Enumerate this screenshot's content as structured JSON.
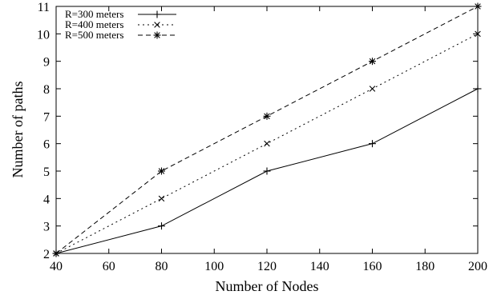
{
  "chart_data": {
    "type": "line",
    "xlabel": "Number of  Nodes",
    "ylabel": "Number of paths",
    "xlim": [
      40,
      200
    ],
    "ylim": [
      2,
      11
    ],
    "xticks": [
      40,
      60,
      80,
      100,
      120,
      140,
      160,
      180,
      200
    ],
    "yticks": [
      2,
      3,
      4,
      5,
      6,
      7,
      8,
      9,
      10,
      11
    ],
    "grid": false,
    "legend_position": "top-left",
    "x": [
      40,
      80,
      120,
      160,
      200
    ],
    "series": [
      {
        "name": "R=300 meters",
        "values": [
          2,
          3,
          5,
          6,
          8
        ],
        "line_style": "solid",
        "marker": "plus",
        "color": "#000000"
      },
      {
        "name": "R=400 meters",
        "values": [
          2,
          4,
          6,
          8,
          10
        ],
        "line_style": "dotted",
        "marker": "x",
        "color": "#000000"
      },
      {
        "name": "R=500 meters",
        "values": [
          2,
          5,
          7,
          9,
          11
        ],
        "line_style": "dashed",
        "marker": "star",
        "color": "#000000"
      }
    ]
  }
}
